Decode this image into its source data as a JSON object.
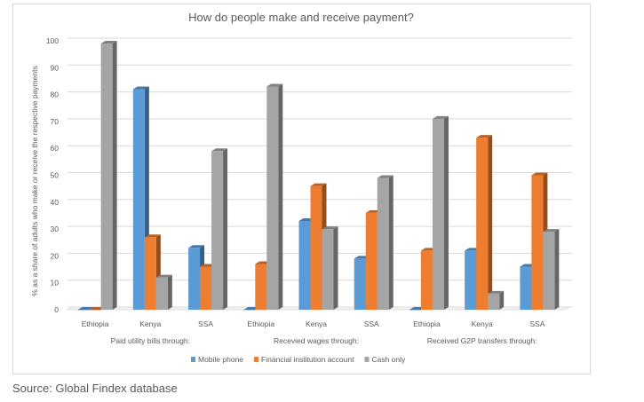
{
  "chart_data": {
    "type": "bar",
    "title": "How do people make and receive payment?",
    "ylabel": "% as a share of adults who make or receive the respective payments",
    "xlabel": "",
    "ylim": [
      0,
      100
    ],
    "yticks": [
      "0",
      "10",
      "20",
      "30",
      "40",
      "50",
      "60",
      "70",
      "80",
      "90",
      "100"
    ],
    "groups": [
      "Paid utility bills through:",
      "Recevied wages through:",
      "Received G2P transfers through:"
    ],
    "categories": [
      "Ethiopia",
      "Kenya",
      "SSA",
      "Ethiopia",
      "Kenya",
      "SSA",
      "Ethiopia",
      "Kenya",
      "SSA"
    ],
    "series": [
      {
        "name": "Mobile phone",
        "color": "#5b9bd5",
        "values": [
          0,
          82,
          23,
          0,
          33,
          19,
          0,
          22,
          16
        ]
      },
      {
        "name": "Financial institution account",
        "color": "#ed7d31",
        "values": [
          0,
          27,
          16,
          17,
          46,
          36,
          22,
          64,
          50
        ]
      },
      {
        "name": "Cash only",
        "color": "#a5a5a5",
        "values": [
          99,
          12,
          59,
          83,
          30,
          49,
          71,
          6,
          29
        ]
      }
    ],
    "legend_position": "bottom",
    "grid": true
  },
  "source_text": "Source: Global Findex database"
}
